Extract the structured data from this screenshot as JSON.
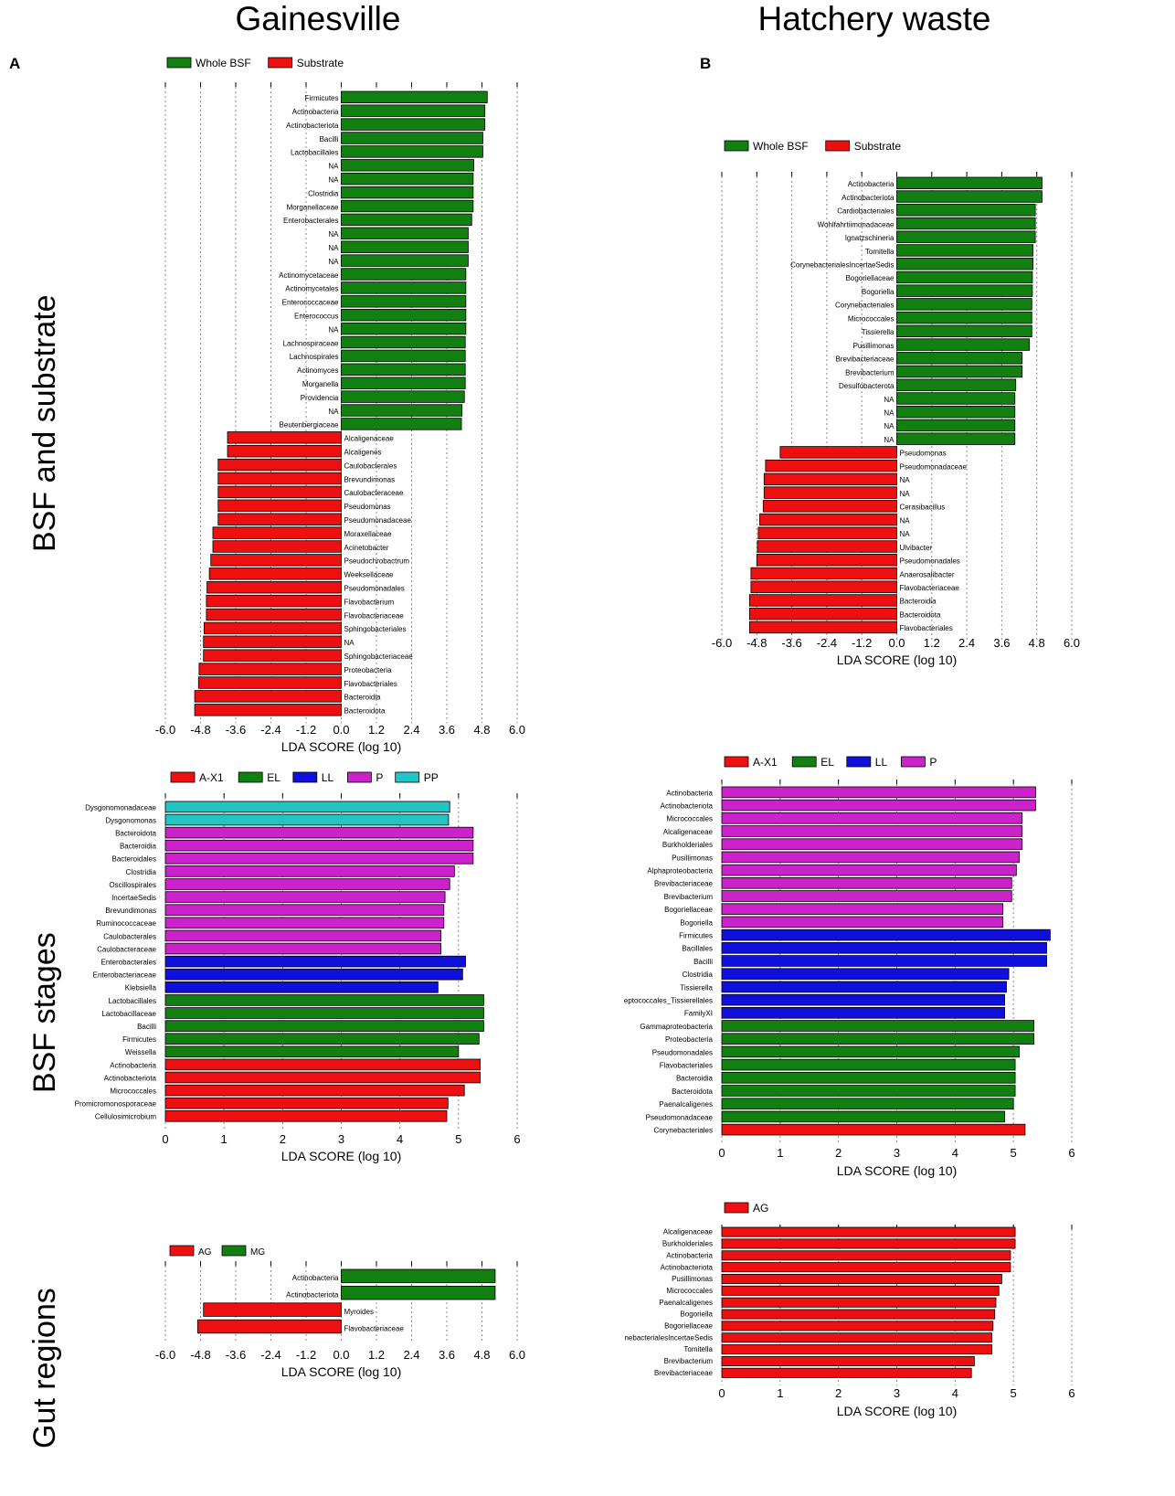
{
  "figure": {
    "col_titles": [
      "Gainesville",
      "Hatchery waste"
    ],
    "row_titles": [
      "BSF and substrate",
      "BSF stages",
      "Gut regions"
    ],
    "panel_letters": [
      "A",
      "B"
    ]
  },
  "colors": {
    "Whole BSF": "#118011",
    "Substrate": "#ee1010",
    "A-X1": "#ee1010",
    "EL": "#118011",
    "LL": "#1010dd",
    "P": "#cc22cc",
    "PP": "#22c4c4",
    "AG": "#ee1010",
    "MG": "#118011"
  },
  "chart_data": [
    {
      "id": "bsf_substrate_gainesville",
      "type": "bar",
      "orientation": "diverging",
      "xlabel": "LDA SCORE (log 10)",
      "xlim": [
        -6.0,
        6.0
      ],
      "xticks": [
        -6.0,
        -4.8,
        -3.6,
        -2.4,
        -1.2,
        0.0,
        1.2,
        2.4,
        3.6,
        4.8,
        6.0
      ],
      "legend": [
        "Whole BSF",
        "Substrate"
      ],
      "bars": [
        {
          "label": "Firmicutes",
          "value": 4.98,
          "group": "Whole BSF"
        },
        {
          "label": "Actinobacteria",
          "value": 4.9,
          "group": "Whole BSF"
        },
        {
          "label": "Actinobacteriota",
          "value": 4.9,
          "group": "Whole BSF"
        },
        {
          "label": "Bacilli",
          "value": 4.83,
          "group": "Whole BSF"
        },
        {
          "label": "Lactobacillales",
          "value": 4.83,
          "group": "Whole BSF"
        },
        {
          "label": "NA",
          "value": 4.52,
          "group": "Whole BSF"
        },
        {
          "label": "NA",
          "value": 4.5,
          "group": "Whole BSF"
        },
        {
          "label": "Clostridia",
          "value": 4.5,
          "group": "Whole BSF"
        },
        {
          "label": "Morganellaceae",
          "value": 4.5,
          "group": "Whole BSF"
        },
        {
          "label": "Enterobacterales",
          "value": 4.45,
          "group": "Whole BSF"
        },
        {
          "label": "NA",
          "value": 4.33,
          "group": "Whole BSF"
        },
        {
          "label": "NA",
          "value": 4.33,
          "group": "Whole BSF"
        },
        {
          "label": "NA",
          "value": 4.33,
          "group": "Whole BSF"
        },
        {
          "label": "Actinomycetaceae",
          "value": 4.25,
          "group": "Whole BSF"
        },
        {
          "label": "Actinomycetales",
          "value": 4.25,
          "group": "Whole BSF"
        },
        {
          "label": "Enterococcaceae",
          "value": 4.25,
          "group": "Whole BSF"
        },
        {
          "label": "Enterococcus",
          "value": 4.25,
          "group": "Whole BSF"
        },
        {
          "label": "NA",
          "value": 4.25,
          "group": "Whole BSF"
        },
        {
          "label": "Lachnospiraceae",
          "value": 4.23,
          "group": "Whole BSF"
        },
        {
          "label": "Lachnospirales",
          "value": 4.23,
          "group": "Whole BSF"
        },
        {
          "label": "Actinomyces",
          "value": 4.23,
          "group": "Whole BSF"
        },
        {
          "label": "Morganella",
          "value": 4.23,
          "group": "Whole BSF"
        },
        {
          "label": "Providencia",
          "value": 4.2,
          "group": "Whole BSF"
        },
        {
          "label": "NA",
          "value": 4.12,
          "group": "Whole BSF"
        },
        {
          "label": "Beutenbergiaceae",
          "value": 4.1,
          "group": "Whole BSF"
        },
        {
          "label": "Alcaligenaceae",
          "value": -3.88,
          "group": "Substrate"
        },
        {
          "label": "Alcaligenes",
          "value": -3.88,
          "group": "Substrate"
        },
        {
          "label": "Caulobacterales",
          "value": -4.2,
          "group": "Substrate"
        },
        {
          "label": "Brevundimonas",
          "value": -4.2,
          "group": "Substrate"
        },
        {
          "label": "Caulobacteraceae",
          "value": -4.2,
          "group": "Substrate"
        },
        {
          "label": "Pseudomonas",
          "value": -4.2,
          "group": "Substrate"
        },
        {
          "label": "Pseudomonadaceae",
          "value": -4.2,
          "group": "Substrate"
        },
        {
          "label": "Moraxellaceae",
          "value": -4.38,
          "group": "Substrate"
        },
        {
          "label": "Acinetobacter",
          "value": -4.38,
          "group": "Substrate"
        },
        {
          "label": "Pseudochrobactrum",
          "value": -4.45,
          "group": "Substrate"
        },
        {
          "label": "Weeksellaceae",
          "value": -4.5,
          "group": "Substrate"
        },
        {
          "label": "Pseudomonadales",
          "value": -4.58,
          "group": "Substrate"
        },
        {
          "label": "Flavobacterium",
          "value": -4.6,
          "group": "Substrate"
        },
        {
          "label": "Flavobacteriaceae",
          "value": -4.6,
          "group": "Substrate"
        },
        {
          "label": "Sphingobacteriales",
          "value": -4.68,
          "group": "Substrate"
        },
        {
          "label": "NA",
          "value": -4.7,
          "group": "Substrate"
        },
        {
          "label": "Sphingobacteriaceae",
          "value": -4.7,
          "group": "Substrate"
        },
        {
          "label": "Proteobacteria",
          "value": -4.85,
          "group": "Substrate"
        },
        {
          "label": "Flavobacteriales",
          "value": -4.87,
          "group": "Substrate"
        },
        {
          "label": "Bacteroidia",
          "value": -5.0,
          "group": "Substrate"
        },
        {
          "label": "Bacteroidota",
          "value": -5.0,
          "group": "Substrate"
        }
      ]
    },
    {
      "id": "bsf_substrate_hatchery",
      "type": "bar",
      "orientation": "diverging",
      "xlabel": "LDA SCORE (log 10)",
      "xlim": [
        -6.0,
        6.0
      ],
      "xticks": [
        -6.0,
        -4.8,
        -3.6,
        -2.4,
        -1.2,
        0.0,
        1.2,
        2.4,
        3.6,
        4.8,
        6.0
      ],
      "legend": [
        "Whole BSF",
        "Substrate"
      ],
      "bars": [
        {
          "label": "Actinobacteria",
          "value": 4.98,
          "group": "Whole BSF"
        },
        {
          "label": "Actinobacteriota",
          "value": 4.98,
          "group": "Whole BSF"
        },
        {
          "label": "Cardiobacteriales",
          "value": 4.75,
          "group": "Whole BSF"
        },
        {
          "label": "Wohlfahrtiimonadaceae",
          "value": 4.75,
          "group": "Whole BSF"
        },
        {
          "label": "Ignatzschineria",
          "value": 4.75,
          "group": "Whole BSF"
        },
        {
          "label": "Tomitella",
          "value": 4.67,
          "group": "Whole BSF"
        },
        {
          "label": "CorynebacterialesIncertaeSedis",
          "value": 4.67,
          "group": "Whole BSF"
        },
        {
          "label": "Bogoriellaceae",
          "value": 4.65,
          "group": "Whole BSF"
        },
        {
          "label": "Bogoriella",
          "value": 4.65,
          "group": "Whole BSF"
        },
        {
          "label": "Corynebacteriales",
          "value": 4.63,
          "group": "Whole BSF"
        },
        {
          "label": "Micrococcales",
          "value": 4.63,
          "group": "Whole BSF"
        },
        {
          "label": "Tissierella",
          "value": 4.63,
          "group": "Whole BSF"
        },
        {
          "label": "Pusillimonas",
          "value": 4.55,
          "group": "Whole BSF"
        },
        {
          "label": "Brevibacteriaceae",
          "value": 4.3,
          "group": "Whole BSF"
        },
        {
          "label": "Brevibacterium",
          "value": 4.3,
          "group": "Whole BSF"
        },
        {
          "label": "Desulfobacterota",
          "value": 4.08,
          "group": "Whole BSF"
        },
        {
          "label": "NA",
          "value": 4.05,
          "group": "Whole BSF"
        },
        {
          "label": "NA",
          "value": 4.05,
          "group": "Whole BSF"
        },
        {
          "label": "NA",
          "value": 4.05,
          "group": "Whole BSF"
        },
        {
          "label": "NA",
          "value": 4.05,
          "group": "Whole BSF"
        },
        {
          "label": "Pseudomonas",
          "value": -4.0,
          "group": "Substrate"
        },
        {
          "label": "Pseudomonadaceae",
          "value": -4.5,
          "group": "Substrate"
        },
        {
          "label": "NA",
          "value": -4.55,
          "group": "Substrate"
        },
        {
          "label": "NA",
          "value": -4.55,
          "group": "Substrate"
        },
        {
          "label": "Cerasibacillus",
          "value": -4.58,
          "group": "Substrate"
        },
        {
          "label": "NA",
          "value": -4.7,
          "group": "Substrate"
        },
        {
          "label": "NA",
          "value": -4.75,
          "group": "Substrate"
        },
        {
          "label": "Ulvibacter",
          "value": -4.78,
          "group": "Substrate"
        },
        {
          "label": "Pseudomonadales",
          "value": -4.8,
          "group": "Substrate"
        },
        {
          "label": "Anaerosalibacter",
          "value": -5.0,
          "group": "Substrate"
        },
        {
          "label": "Flavobacteriaceae",
          "value": -5.0,
          "group": "Substrate"
        },
        {
          "label": "Bacteroidia",
          "value": -5.05,
          "group": "Substrate"
        },
        {
          "label": "Bacteroidota",
          "value": -5.05,
          "group": "Substrate"
        },
        {
          "label": "Flavobacteriales",
          "value": -5.05,
          "group": "Substrate"
        }
      ]
    },
    {
      "id": "bsf_stages_gainesville",
      "type": "bar",
      "orientation": "horizontal",
      "xlabel": "LDA SCORE (log 10)",
      "xlim": [
        0,
        6
      ],
      "xticks": [
        0,
        1,
        2,
        3,
        4,
        5,
        6
      ],
      "legend": [
        "A-X1",
        "EL",
        "LL",
        "P",
        "PP"
      ],
      "bars": [
        {
          "label": "Dysgonomonadaceae",
          "value": 4.85,
          "group": "PP"
        },
        {
          "label": "Dysgonomonas",
          "value": 4.83,
          "group": "PP"
        },
        {
          "label": "Bacteroidota",
          "value": 5.25,
          "group": "P"
        },
        {
          "label": "Bacteroidia",
          "value": 5.25,
          "group": "P"
        },
        {
          "label": "Bacteroidales",
          "value": 5.25,
          "group": "P"
        },
        {
          "label": "Clostridia",
          "value": 4.93,
          "group": "P"
        },
        {
          "label": "Oscillospirales",
          "value": 4.85,
          "group": "P"
        },
        {
          "label": "IncertaeSedis",
          "value": 4.77,
          "group": "P"
        },
        {
          "label": "Brevundimonas",
          "value": 4.75,
          "group": "P"
        },
        {
          "label": "Ruminococcaceae",
          "value": 4.75,
          "group": "P"
        },
        {
          "label": "Caulobacterales",
          "value": 4.7,
          "group": "P"
        },
        {
          "label": "Caulobacteraceae",
          "value": 4.7,
          "group": "P"
        },
        {
          "label": "Enterobacterales",
          "value": 5.12,
          "group": "LL"
        },
        {
          "label": "Enterobacteriaceae",
          "value": 5.07,
          "group": "LL"
        },
        {
          "label": "Klebsiella",
          "value": 4.65,
          "group": "LL"
        },
        {
          "label": "Lactobacillales",
          "value": 5.43,
          "group": "EL"
        },
        {
          "label": "Lactobacillaceae",
          "value": 5.43,
          "group": "EL"
        },
        {
          "label": "Bacilli",
          "value": 5.43,
          "group": "EL"
        },
        {
          "label": "Firmicutes",
          "value": 5.35,
          "group": "EL"
        },
        {
          "label": "Weissella",
          "value": 5.0,
          "group": "EL"
        },
        {
          "label": "Actinobacteria",
          "value": 5.37,
          "group": "A-X1"
        },
        {
          "label": "Actinobacteriota",
          "value": 5.37,
          "group": "A-X1"
        },
        {
          "label": "Micrococcales",
          "value": 5.1,
          "group": "A-X1"
        },
        {
          "label": "Promicromonosporaceae",
          "value": 4.82,
          "group": "A-X1"
        },
        {
          "label": "Cellulosimicrobium",
          "value": 4.8,
          "group": "A-X1"
        }
      ]
    },
    {
      "id": "bsf_stages_hatchery",
      "type": "bar",
      "orientation": "horizontal",
      "xlabel": "LDA SCORE (log 10)",
      "xlim": [
        0,
        6
      ],
      "xticks": [
        0,
        1,
        2,
        3,
        4,
        5,
        6
      ],
      "legend": [
        "A-X1",
        "EL",
        "LL",
        "P"
      ],
      "bars": [
        {
          "label": "Actinobacteria",
          "value": 5.38,
          "group": "P"
        },
        {
          "label": "Actinobacteriota",
          "value": 5.38,
          "group": "P"
        },
        {
          "label": "Micrococcales",
          "value": 5.15,
          "group": "P"
        },
        {
          "label": "Alcaligenaceae",
          "value": 5.15,
          "group": "P"
        },
        {
          "label": "Burkholderiales",
          "value": 5.15,
          "group": "P"
        },
        {
          "label": "Pusillimonas",
          "value": 5.1,
          "group": "P"
        },
        {
          "label": "Alphaproteobacteria",
          "value": 5.05,
          "group": "P"
        },
        {
          "label": "Brevibacteriaceae",
          "value": 4.97,
          "group": "P"
        },
        {
          "label": "Brevibacterium",
          "value": 4.97,
          "group": "P"
        },
        {
          "label": "Bogoriellaceae",
          "value": 4.82,
          "group": "P"
        },
        {
          "label": "Bogoriella",
          "value": 4.82,
          "group": "P"
        },
        {
          "label": "Firmicutes",
          "value": 5.63,
          "group": "LL"
        },
        {
          "label": "Bacillales",
          "value": 5.57,
          "group": "LL"
        },
        {
          "label": "Bacilli",
          "value": 5.57,
          "group": "LL"
        },
        {
          "label": "Clostridia",
          "value": 4.92,
          "group": "LL"
        },
        {
          "label": "Tissierella",
          "value": 4.88,
          "group": "LL"
        },
        {
          "label": "eptococcales_Tissierellales",
          "value": 4.85,
          "group": "LL"
        },
        {
          "label": "FamilyXI",
          "value": 4.85,
          "group": "LL"
        },
        {
          "label": "Gammaproteobacteria",
          "value": 5.35,
          "group": "EL"
        },
        {
          "label": "Proteobacteria",
          "value": 5.35,
          "group": "EL"
        },
        {
          "label": "Pseudomonadales",
          "value": 5.1,
          "group": "EL"
        },
        {
          "label": "Flavobacteriales",
          "value": 5.03,
          "group": "EL"
        },
        {
          "label": "Bacteroidia",
          "value": 5.03,
          "group": "EL"
        },
        {
          "label": "Bacteroidota",
          "value": 5.03,
          "group": "EL"
        },
        {
          "label": "Paenalcaligenes",
          "value": 5.0,
          "group": "EL"
        },
        {
          "label": "Pseudomonadaceae",
          "value": 4.85,
          "group": "EL"
        },
        {
          "label": "Corynebacteriales",
          "value": 5.2,
          "group": "A-X1"
        }
      ]
    },
    {
      "id": "gut_regions_gainesville",
      "type": "bar",
      "orientation": "diverging",
      "xlabel": "LDA SCORE (log 10)",
      "xlim": [
        -6.0,
        6.0
      ],
      "xticks": [
        -6.0,
        -4.8,
        -3.6,
        -2.4,
        -1.2,
        0.0,
        1.2,
        2.4,
        3.6,
        4.8,
        6.0
      ],
      "legend": [
        "AG",
        "MG"
      ],
      "bars": [
        {
          "label": "Actinobacteria",
          "value": 5.25,
          "group": "MG"
        },
        {
          "label": "Actinobacteriota",
          "value": 5.25,
          "group": "MG"
        },
        {
          "label": "Myroides",
          "value": -4.7,
          "group": "AG"
        },
        {
          "label": "Flavobacteriaceae",
          "value": -4.9,
          "group": "AG"
        }
      ]
    },
    {
      "id": "gut_regions_hatchery",
      "type": "bar",
      "orientation": "horizontal",
      "xlabel": "LDA SCORE (log 10)",
      "xlim": [
        0,
        6
      ],
      "xticks": [
        0,
        1,
        2,
        3,
        4,
        5,
        6
      ],
      "legend": [
        "AG"
      ],
      "bars": [
        {
          "label": "Alcaligenaceae",
          "value": 5.03,
          "group": "AG"
        },
        {
          "label": "Burkholderiales",
          "value": 5.03,
          "group": "AG"
        },
        {
          "label": "Actinobacteria",
          "value": 4.95,
          "group": "AG"
        },
        {
          "label": "Actinobacteriota",
          "value": 4.95,
          "group": "AG"
        },
        {
          "label": "Pusillimonas",
          "value": 4.8,
          "group": "AG"
        },
        {
          "label": "Micrococcales",
          "value": 4.75,
          "group": "AG"
        },
        {
          "label": "Paenalcaligenes",
          "value": 4.7,
          "group": "AG"
        },
        {
          "label": "Bogoriella",
          "value": 4.68,
          "group": "AG"
        },
        {
          "label": "Bogoriellaceae",
          "value": 4.65,
          "group": "AG"
        },
        {
          "label": "nebacterialesIncertaeSedis",
          "value": 4.63,
          "group": "AG"
        },
        {
          "label": "Tomitella",
          "value": 4.63,
          "group": "AG"
        },
        {
          "label": "Brevibacterium",
          "value": 4.33,
          "group": "AG"
        },
        {
          "label": "Brevibacteriaceae",
          "value": 4.28,
          "group": "AG"
        }
      ]
    }
  ]
}
